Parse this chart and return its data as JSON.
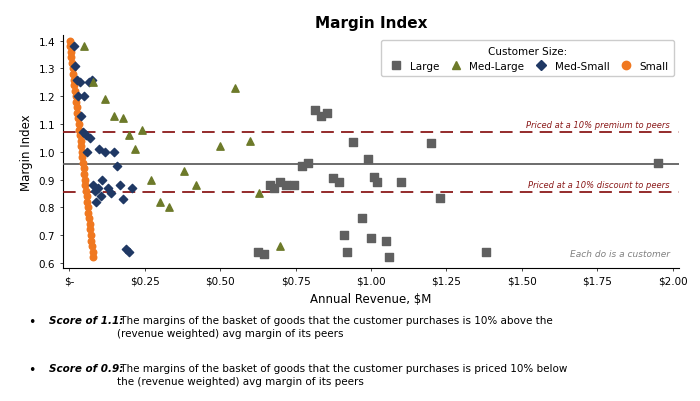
{
  "title": "Margin Index",
  "xlabel": "Annual Revenue, $M",
  "ylabel": "Margin Index",
  "xlim": [
    -0.02,
    2.02
  ],
  "ylim": [
    0.58,
    1.42
  ],
  "reference_line_y": 0.955,
  "premium_line_y": 1.07,
  "discount_line_y": 0.855,
  "premium_label": "Priced at a 10% premium to peers",
  "discount_label": "Priced at a 10% discount to peers",
  "annotation": "Each do is a customer",
  "xticks": [
    0,
    0.25,
    0.5,
    0.75,
    1.0,
    1.25,
    1.5,
    1.75,
    2.0
  ],
  "xtick_labels": [
    "$-",
    "$0.25",
    "$0.50",
    "$0.75",
    "$1.00",
    "$1.25",
    "$1.50",
    "$1.75",
    "$2.00"
  ],
  "yticks": [
    0.6,
    0.7,
    0.8,
    0.9,
    1.0,
    1.1,
    1.2,
    1.3,
    1.4
  ],
  "colors": {
    "large": "#606060",
    "med_large": "#6d7a2a",
    "med_small": "#1f3864",
    "small": "#f07820",
    "reference_line": "#606060",
    "dashed_line": "#8b1a1a",
    "background": "#ffffff",
    "annotation": "#808080"
  },
  "large_x": [
    0.625,
    0.645,
    0.665,
    0.68,
    0.7,
    0.72,
    0.745,
    0.77,
    0.79,
    0.815,
    0.835,
    0.855,
    0.875,
    0.895,
    0.91,
    0.92,
    0.94,
    0.97,
    0.99,
    1.0,
    1.01,
    1.02,
    1.05,
    1.06,
    1.1,
    1.2,
    1.23,
    1.38,
    1.95
  ],
  "large_y": [
    0.64,
    0.63,
    0.88,
    0.87,
    0.89,
    0.88,
    0.88,
    0.95,
    0.96,
    1.15,
    1.13,
    1.14,
    0.905,
    0.89,
    0.7,
    0.64,
    1.035,
    0.76,
    0.975,
    0.69,
    0.91,
    0.89,
    0.68,
    0.62,
    0.89,
    1.03,
    0.835,
    0.64,
    0.96
  ],
  "med_large_x": [
    0.05,
    0.08,
    0.12,
    0.15,
    0.18,
    0.2,
    0.22,
    0.24,
    0.27,
    0.3,
    0.33,
    0.38,
    0.42,
    0.5,
    0.55,
    0.6,
    0.63,
    0.7
  ],
  "med_large_y": [
    1.38,
    1.25,
    1.19,
    1.13,
    1.12,
    1.06,
    1.01,
    1.08,
    0.9,
    0.82,
    0.8,
    0.93,
    0.88,
    1.02,
    1.23,
    1.04,
    0.85,
    0.66
  ],
  "med_small_x": [
    0.015,
    0.02,
    0.025,
    0.03,
    0.035,
    0.04,
    0.045,
    0.05,
    0.055,
    0.06,
    0.065,
    0.07,
    0.075,
    0.08,
    0.085,
    0.09,
    0.095,
    0.1,
    0.105,
    0.11,
    0.12,
    0.13,
    0.14,
    0.15,
    0.16,
    0.17,
    0.18,
    0.19,
    0.2,
    0.21
  ],
  "med_small_y": [
    1.38,
    1.31,
    1.26,
    1.2,
    1.25,
    1.13,
    1.07,
    1.2,
    1.06,
    1.0,
    1.25,
    1.05,
    1.26,
    0.88,
    0.86,
    0.82,
    0.87,
    1.01,
    0.84,
    0.9,
    1.0,
    0.87,
    0.85,
    1.0,
    0.95,
    0.88,
    0.83,
    0.65,
    0.64,
    0.87
  ],
  "small_x": [
    0.002,
    0.004,
    0.006,
    0.008,
    0.01,
    0.012,
    0.014,
    0.016,
    0.018,
    0.02,
    0.022,
    0.024,
    0.026,
    0.028,
    0.03,
    0.032,
    0.034,
    0.036,
    0.038,
    0.04,
    0.042,
    0.044,
    0.046,
    0.048,
    0.05,
    0.052,
    0.054,
    0.056,
    0.058,
    0.06,
    0.062,
    0.064,
    0.066,
    0.068,
    0.07,
    0.072,
    0.074,
    0.076,
    0.078,
    0.08
  ],
  "small_y": [
    1.4,
    1.38,
    1.36,
    1.34,
    1.32,
    1.3,
    1.28,
    1.26,
    1.24,
    1.22,
    1.2,
    1.18,
    1.16,
    1.14,
    1.12,
    1.1,
    1.08,
    1.06,
    1.04,
    1.02,
    1.0,
    0.98,
    0.96,
    0.94,
    0.92,
    0.9,
    0.88,
    0.86,
    0.84,
    0.82,
    0.8,
    0.78,
    0.76,
    0.74,
    0.72,
    0.7,
    0.68,
    0.66,
    0.64,
    0.62
  ],
  "bullet1_bold": "Score of 1.1:",
  "bullet1_rest": " The margins of the basket of goods that the customer purchases is 10% above the\n(revenue weighted) avg margin of its peers",
  "bullet2_bold": "Score of 0.9:",
  "bullet2_rest": " The margins of the basket of goods that the customer purchases is priced 10% below\nthe (revenue weighted) avg margin of its peers"
}
